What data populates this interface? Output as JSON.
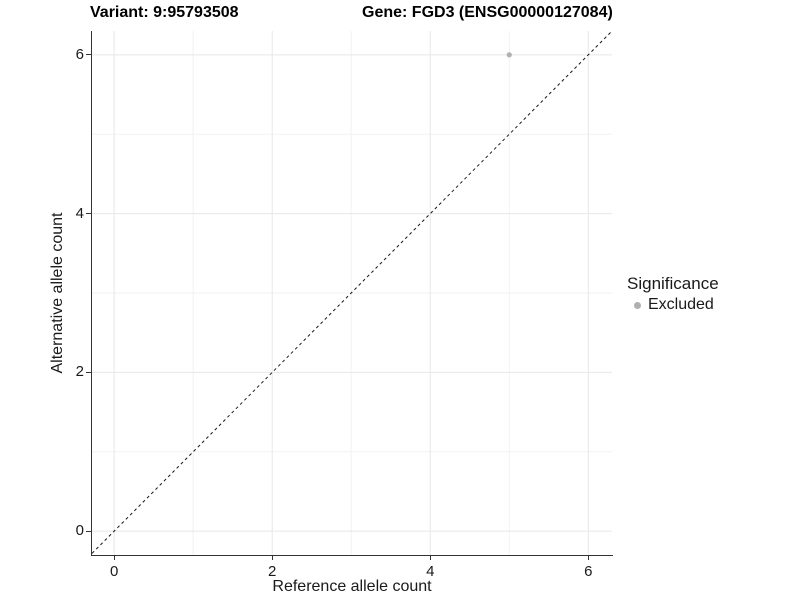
{
  "chart_data": {
    "type": "scatter",
    "title_left": "Variant: 9:95793508",
    "title_right": "Gene: FGD3 (ENSG00000127084)",
    "xlabel": "Reference allele count",
    "ylabel": "Alternative allele count",
    "x_ticks": [
      0,
      2,
      4,
      6
    ],
    "y_ticks": [
      0,
      2,
      4,
      6
    ],
    "x_minor_ticks": [
      1,
      3,
      5
    ],
    "y_minor_ticks": [
      1,
      3,
      5
    ],
    "xlim": [
      -0.28,
      6.3
    ],
    "ylim": [
      -0.3,
      6.3
    ],
    "grid": true,
    "points": [
      {
        "x": 5,
        "y": 6,
        "series": "Excluded"
      }
    ],
    "identity_line": {
      "slope": 1,
      "intercept": 0,
      "style": "dashed"
    },
    "legend": {
      "title": "Significance",
      "position": "right",
      "entries": [
        {
          "label": "Excluded",
          "color": "#b0b0b0"
        }
      ]
    }
  },
  "colors": {
    "point": "#b0b0b0",
    "grid_major": "#e7e7e7",
    "grid_minor": "#f2f2f2",
    "axis": "#333333",
    "dashed_line": "#1a1a1a",
    "text": "#1a1a1a"
  }
}
